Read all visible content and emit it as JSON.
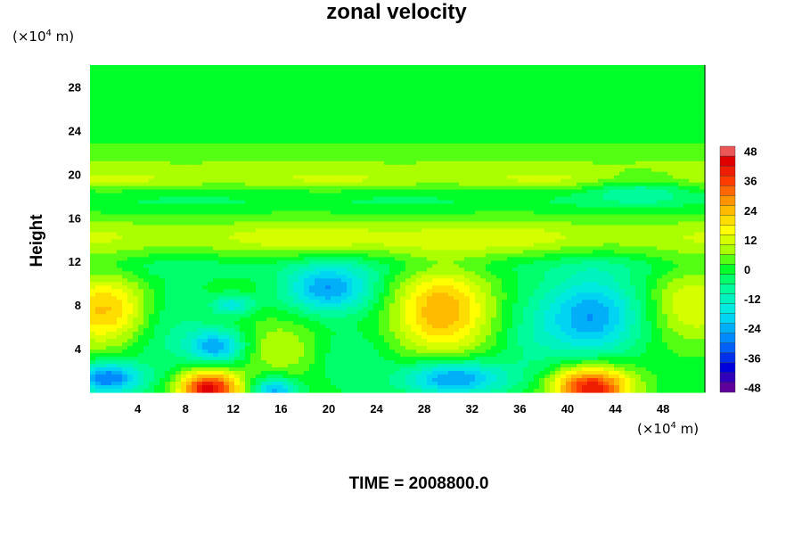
{
  "chart_data": {
    "type": "heatmap",
    "title": "zonal velocity",
    "ylabel": "Height",
    "xlabel": "",
    "x_unit_prefix": "(×10",
    "x_unit_exp": "4",
    "x_unit_suffix": " m)",
    "y_unit_prefix": "(×10",
    "y_unit_exp": "4",
    "y_unit_suffix": " m)",
    "xlim": [
      0,
      51.5
    ],
    "ylim": [
      0,
      30
    ],
    "x_ticks": [
      4,
      8,
      12,
      16,
      20,
      24,
      28,
      32,
      36,
      40,
      44,
      48
    ],
    "y_ticks": [
      4,
      8,
      12,
      16,
      20,
      24,
      28
    ],
    "colorbar": {
      "min": -50,
      "max": 50,
      "step": 4,
      "ticks": [
        48,
        36,
        24,
        12,
        0,
        -12,
        -24,
        -36,
        -48
      ]
    },
    "features": [
      {
        "x": 1.5,
        "y": 7.5,
        "sx": 3.0,
        "sy": 2.3,
        "v": 24
      },
      {
        "x": 29.5,
        "y": 7.5,
        "sx": 2.8,
        "sy": 2.8,
        "v": 26
      },
      {
        "x": 50.5,
        "y": 8.0,
        "sx": 2.5,
        "sy": 2.5,
        "v": 14
      },
      {
        "x": 10.0,
        "y": 0.3,
        "sx": 1.8,
        "sy": 1.2,
        "v": 44
      },
      {
        "x": 42.0,
        "y": 0.4,
        "sx": 2.3,
        "sy": 1.4,
        "v": 42
      },
      {
        "x": 16.0,
        "y": 4.0,
        "sx": 2.0,
        "sy": 1.8,
        "v": 10
      },
      {
        "x": 20.0,
        "y": 9.5,
        "sx": 2.6,
        "sy": 1.5,
        "v": -26
      },
      {
        "x": 42.0,
        "y": 7.0,
        "sx": 2.8,
        "sy": 2.6,
        "v": -26
      },
      {
        "x": 10.5,
        "y": 4.2,
        "sx": 1.6,
        "sy": 1.1,
        "v": -24
      },
      {
        "x": 12.0,
        "y": 8.0,
        "sx": 1.2,
        "sy": 0.6,
        "v": -16
      },
      {
        "x": 1.5,
        "y": 1.3,
        "sx": 2.0,
        "sy": 1.0,
        "v": -30
      },
      {
        "x": 30.5,
        "y": 1.3,
        "sx": 3.0,
        "sy": 1.1,
        "v": -28
      },
      {
        "x": 15.5,
        "y": 0.2,
        "sx": 1.3,
        "sy": 0.8,
        "v": -24
      },
      {
        "x": 6.0,
        "y": 6.5,
        "sx": 2.5,
        "sy": 3.0,
        "v": -10
      },
      {
        "x": 37.0,
        "y": 5.0,
        "sx": 2.0,
        "sy": 3.0,
        "v": -6
      },
      {
        "x": 22.0,
        "y": 3.0,
        "sx": 2.0,
        "sy": 2.0,
        "v": -6
      },
      {
        "x": 46.0,
        "y": 18.5,
        "sx": 3.0,
        "sy": 0.8,
        "v": -10
      },
      {
        "x": 25.0,
        "y": 14.0,
        "sx": 12.0,
        "sy": 1.0,
        "v": 4
      }
    ],
    "bands": [
      {
        "y": 14.3,
        "s": 1.3,
        "v": 10
      },
      {
        "y": 19.6,
        "s": 0.7,
        "v": 11
      },
      {
        "y": 20.9,
        "s": 0.4,
        "v": 7
      },
      {
        "y": 22.3,
        "s": 0.5,
        "v": 4
      },
      {
        "y": 17.5,
        "s": 0.6,
        "v": -3
      },
      {
        "y": 11.5,
        "s": 0.8,
        "v": -4
      }
    ]
  },
  "footer": {
    "time_label": "TIME = 2008800.0"
  }
}
